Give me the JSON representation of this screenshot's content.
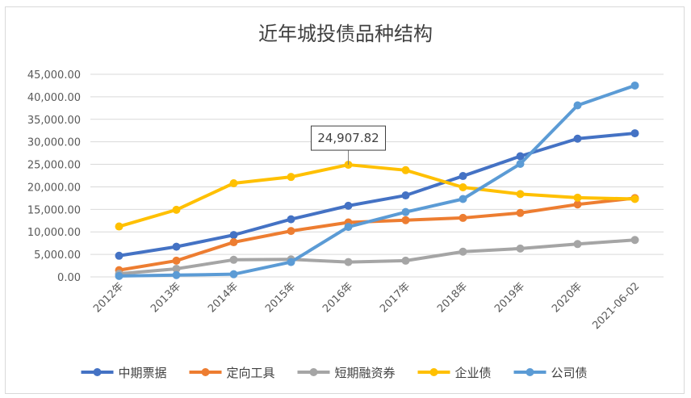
{
  "chart_data": {
    "type": "line",
    "title": "近年城投债品种结构",
    "categories": [
      "2012年",
      "2013年",
      "2014年",
      "2015年",
      "2016年",
      "2017年",
      "2018年",
      "2019年",
      "2020年",
      "2021-06-02"
    ],
    "ylim": [
      0,
      45000
    ],
    "yticks": [
      "0.00",
      "5,000.00",
      "10,000.00",
      "15,000.00",
      "20,000.00",
      "25,000.00",
      "30,000.00",
      "35,000.00",
      "40,000.00",
      "45,000.00"
    ],
    "grid": true,
    "legend_position": "bottom",
    "series": [
      {
        "name": "中期票据",
        "color": "#4472c4",
        "values": [
          4700,
          6700,
          9300,
          12800,
          15800,
          18100,
          22400,
          26800,
          30700,
          31900
        ]
      },
      {
        "name": "定向工具",
        "color": "#ed7d31",
        "values": [
          1500,
          3600,
          7700,
          10200,
          12100,
          12600,
          13100,
          14200,
          16100,
          17500
        ]
      },
      {
        "name": "短期融资券",
        "color": "#a5a5a5",
        "values": [
          700,
          1800,
          3800,
          3900,
          3300,
          3600,
          5600,
          6300,
          7300,
          8200
        ]
      },
      {
        "name": "企业债",
        "color": "#ffc000",
        "values": [
          11200,
          14900,
          20800,
          22200,
          24907.82,
          23700,
          19900,
          18400,
          17600,
          17300
        ]
      },
      {
        "name": "公司债",
        "color": "#5b9bd5",
        "values": [
          200,
          400,
          600,
          3300,
          11100,
          14400,
          17300,
          25100,
          38100,
          42500
        ]
      }
    ],
    "annotation": {
      "series": "企业债",
      "category": "2016年",
      "label": "24,907.82"
    }
  }
}
